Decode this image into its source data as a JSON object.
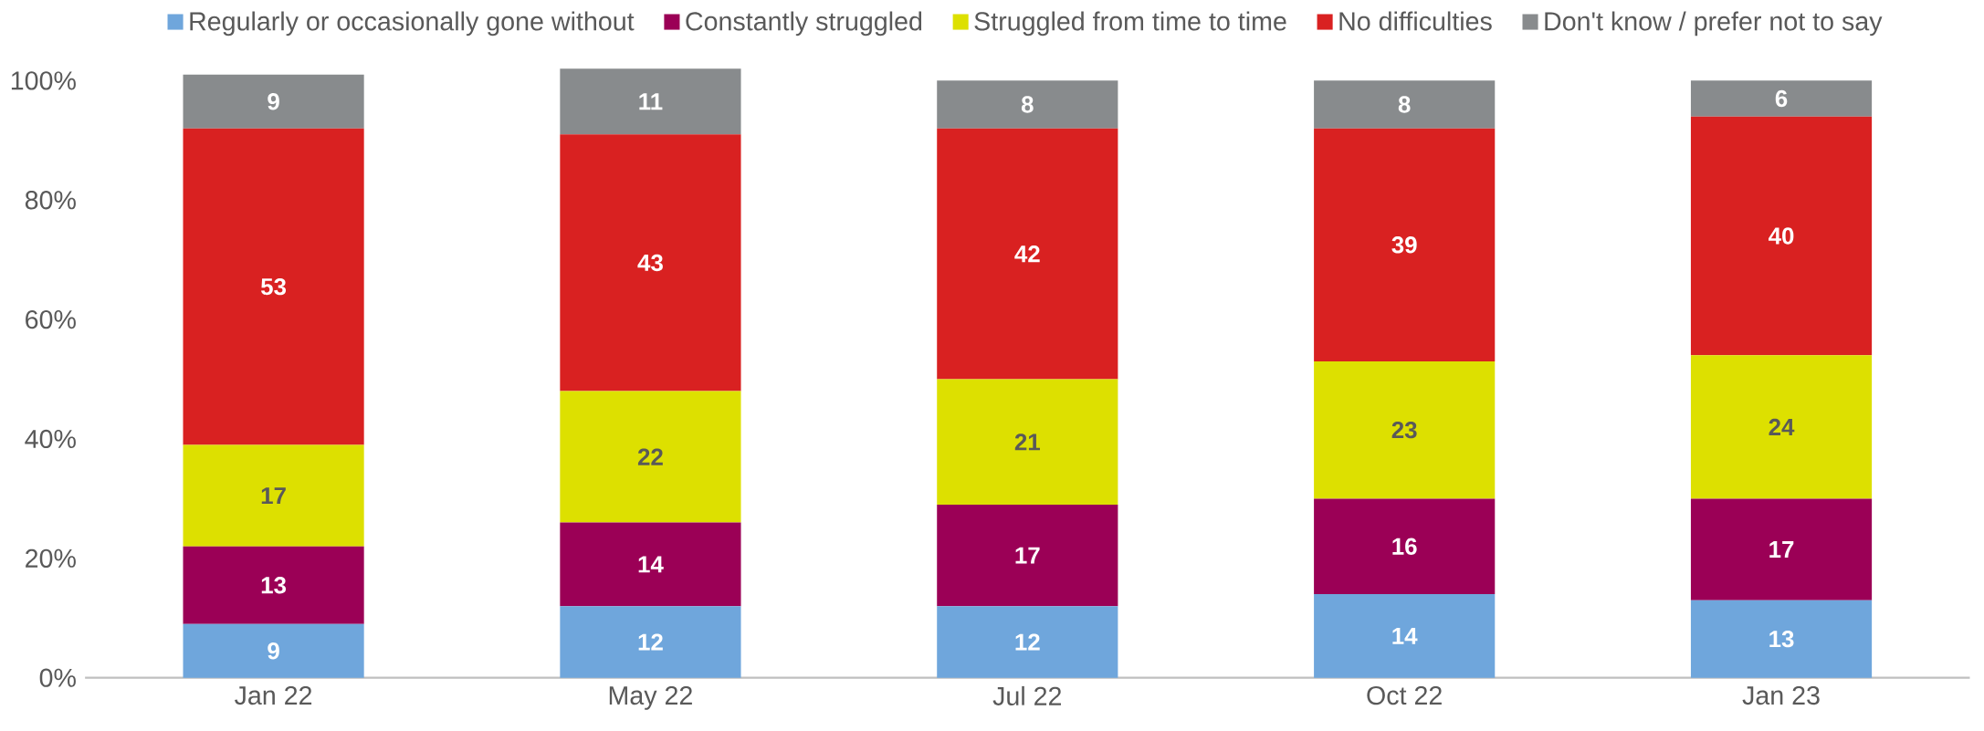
{
  "chart_data": {
    "type": "bar",
    "stacked": true,
    "data_labels": true,
    "legend": "top",
    "categories": [
      "Jan 22",
      "May 22",
      "Jul 22",
      "Oct 22",
      "Jan 23"
    ],
    "series": [
      {
        "name": "Regularly or occasionally gone without",
        "color": "#6fa6dc",
        "values": [
          9,
          12,
          12,
          14,
          13
        ]
      },
      {
        "name": "Constantly struggled",
        "color": "#9b0056",
        "values": [
          13,
          14,
          17,
          16,
          17
        ]
      },
      {
        "name": "Struggled from time to time",
        "color": "#dde000",
        "values": [
          17,
          22,
          21,
          23,
          24
        ]
      },
      {
        "name": "No difficulties",
        "color": "#d92121",
        "values": [
          53,
          43,
          42,
          39,
          40
        ]
      },
      {
        "name": "Don't know / prefer not to say",
        "color": "#888b8d",
        "values": [
          9,
          11,
          8,
          8,
          6
        ]
      }
    ],
    "ylim": [
      0,
      102
    ],
    "yticks": [
      {
        "value": 0,
        "label": "0%"
      },
      {
        "value": 20,
        "label": "20%"
      },
      {
        "value": 40,
        "label": "40%"
      },
      {
        "value": 60,
        "label": "60%"
      },
      {
        "value": 80,
        "label": "80%"
      },
      {
        "value": 100,
        "label": "100%"
      }
    ]
  }
}
